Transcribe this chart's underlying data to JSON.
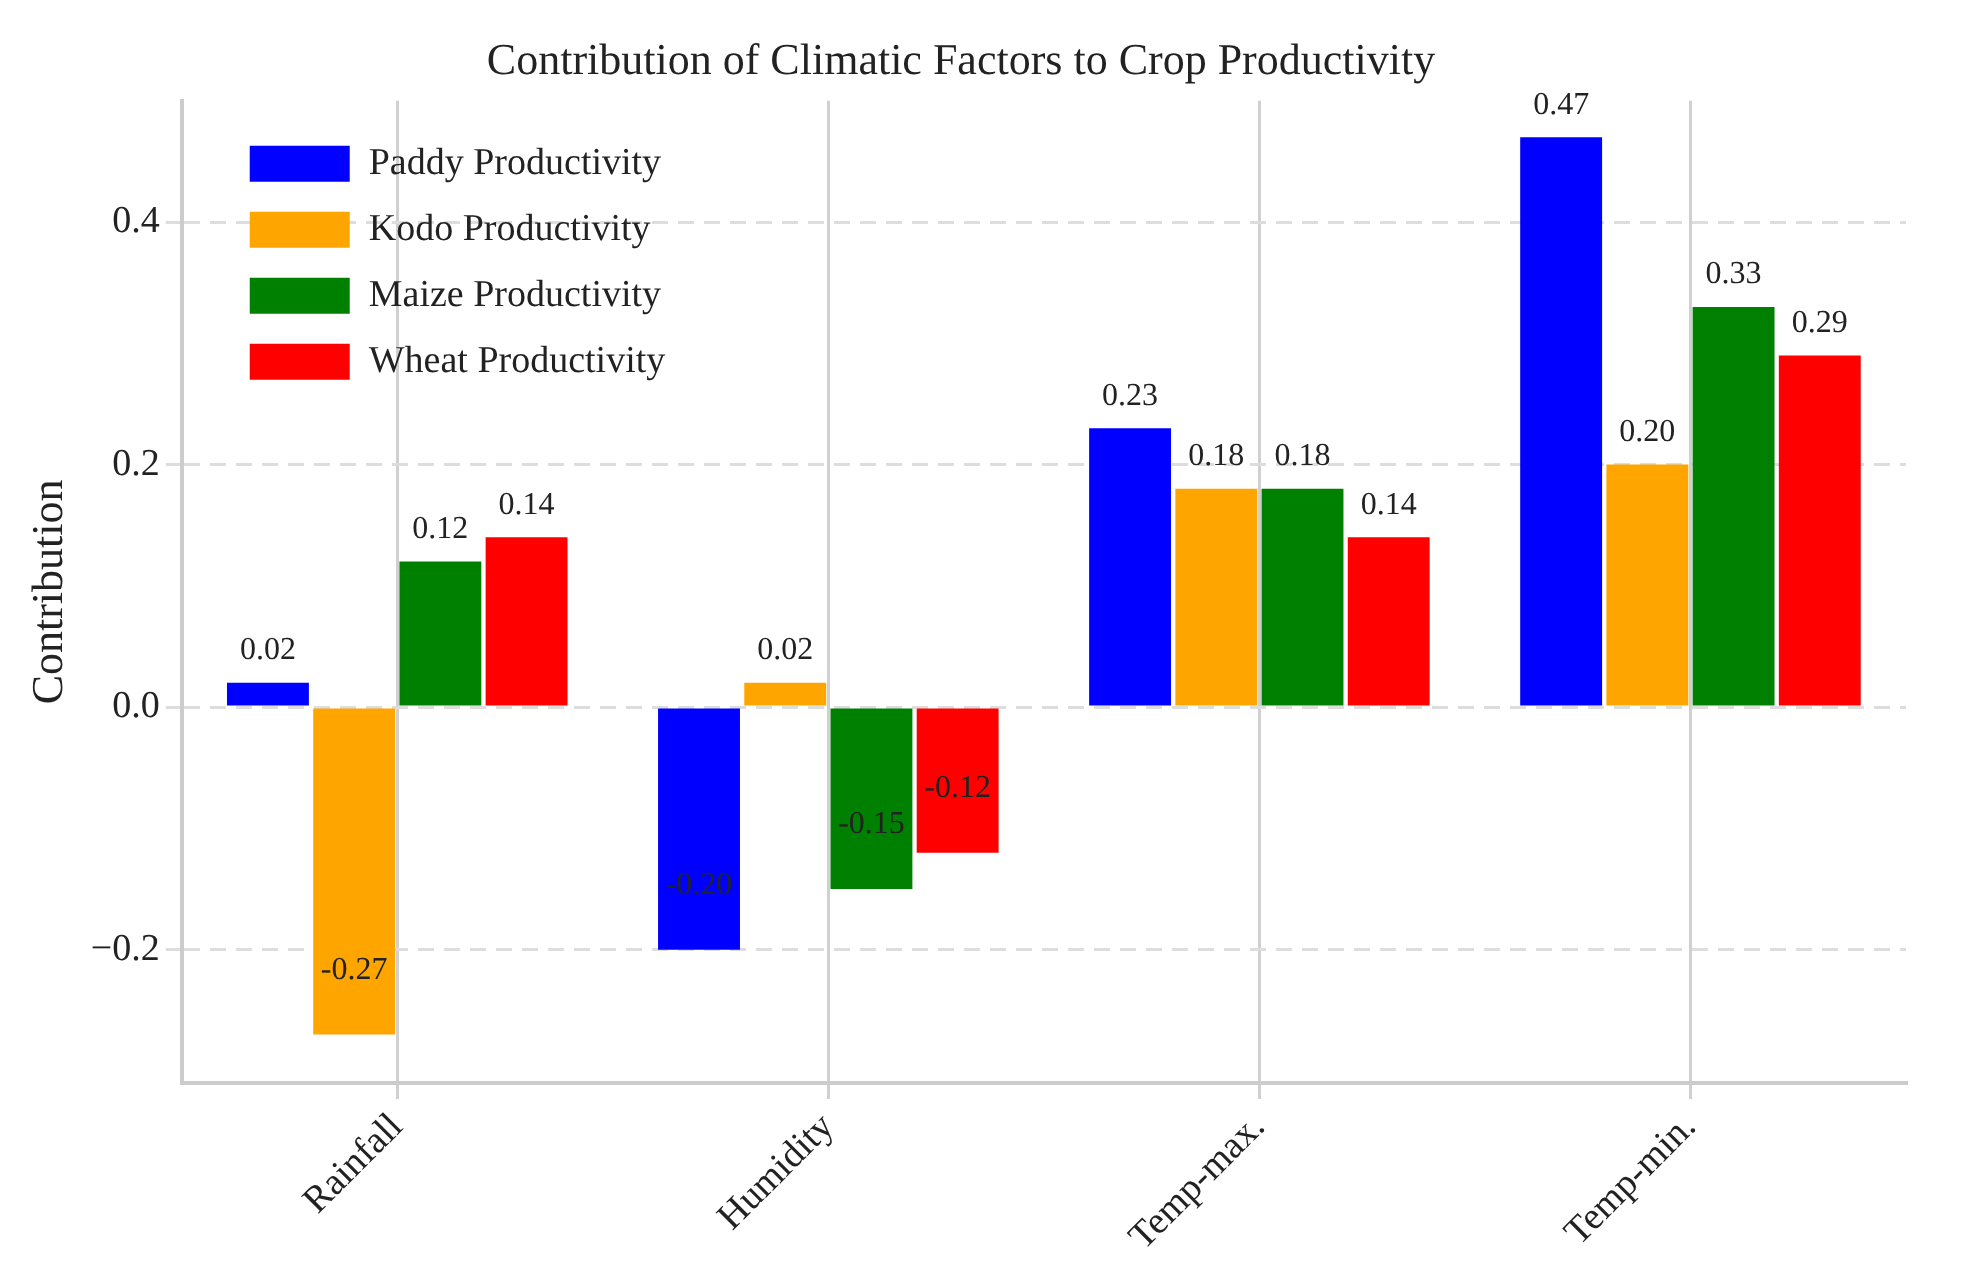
{
  "chart_data": {
    "type": "bar",
    "title": "Contribution of Climatic Factors to Crop Productivity",
    "ylabel": "Contribution",
    "categories": [
      "Rainfall",
      "Humidity",
      "Temp-max.",
      "Temp-min."
    ],
    "series": [
      {
        "name": "Paddy Productivity",
        "color": "#0000ff",
        "values": [
          0.02,
          -0.2,
          0.23,
          0.47
        ],
        "value_labels": [
          "0.02",
          "-0.20",
          "0.23",
          "0.47"
        ]
      },
      {
        "name": "Kodo Productivity",
        "color": "#ffa500",
        "values": [
          -0.27,
          0.02,
          0.18,
          0.2
        ],
        "value_labels": [
          "-0.27",
          "0.02",
          "0.18",
          "0.20"
        ]
      },
      {
        "name": "Maize Productivity",
        "color": "#008000",
        "values": [
          0.12,
          -0.15,
          0.18,
          0.33
        ],
        "value_labels": [
          "0.12",
          "-0.15",
          "0.18",
          "0.33"
        ]
      },
      {
        "name": "Wheat Productivity",
        "color": "#ff0000",
        "values": [
          0.14,
          -0.12,
          0.14,
          0.29
        ],
        "value_labels": [
          "0.14",
          "-0.12",
          "0.14",
          "0.29"
        ]
      }
    ],
    "ylim": [
      -0.31,
      0.5
    ],
    "yticks": [
      {
        "value": -0.2,
        "label": "−0.2"
      },
      {
        "value": 0,
        "label": "0.0"
      },
      {
        "value": 0.2,
        "label": "0.2"
      },
      {
        "value": 0.4,
        "label": "0.4"
      }
    ],
    "grid": true,
    "legend": "top left"
  }
}
